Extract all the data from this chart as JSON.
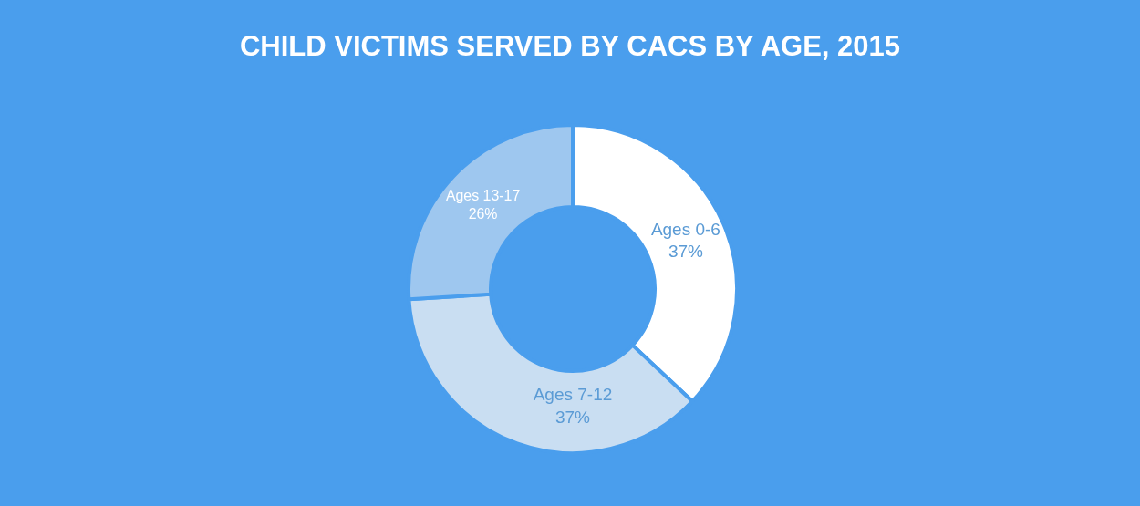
{
  "chart_data": {
    "type": "donut",
    "title": "CHILD VICTIMS SERVED BY CACS BY AGE, 2015",
    "categories": [
      "Ages 0-6",
      "Ages 7-12",
      "Ages 13-17"
    ],
    "values": [
      37,
      37,
      26
    ],
    "value_labels": [
      "37%",
      "37%",
      "26%"
    ],
    "colors": [
      "#ffffff",
      "#c9def2",
      "#9ec7ef"
    ],
    "legend": false
  }
}
